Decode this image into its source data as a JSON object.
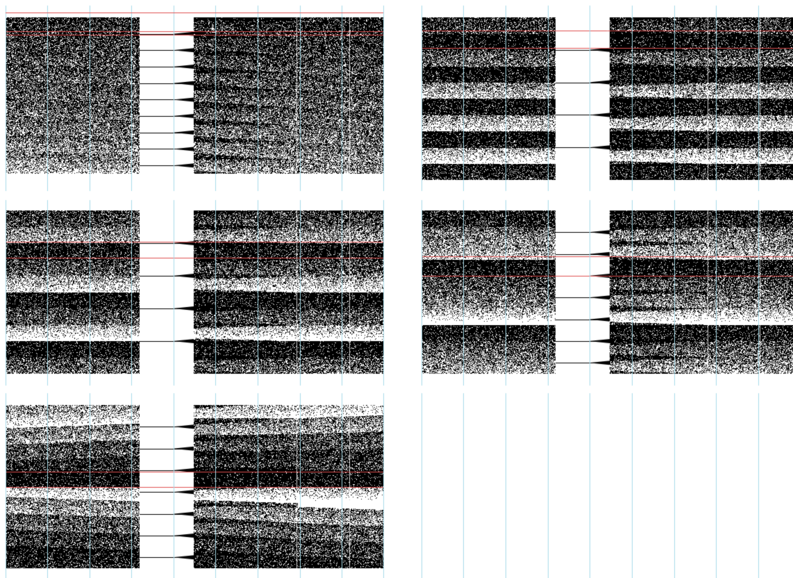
{
  "panels": [
    {
      "name": "panel-top-left",
      "bands": [
        {
          "shade": 0.18,
          "skew": 0.02
        },
        {
          "shade": 0.22,
          "skew": 0.02
        },
        {
          "shade": 0.28,
          "skew": 0.02
        },
        {
          "shade": 0.3,
          "skew": 0.02
        },
        {
          "shade": 0.33,
          "skew": 0.02
        },
        {
          "shade": 0.36,
          "skew": 0.02
        },
        {
          "shade": 0.42,
          "skew": 0.02
        },
        {
          "shade": 0.48,
          "skew": 0.02
        },
        {
          "shade": 0.55,
          "skew": 0.02
        }
      ],
      "pinch_count": 9,
      "red_lines": [
        0.09,
        0.11
      ]
    },
    {
      "name": "panel-top-right",
      "bands": [
        {
          "shade": 0.22,
          "skew": 0
        },
        {
          "shade": 0.08,
          "skew": 0
        },
        {
          "shade": 0.35,
          "skew": 0
        },
        {
          "shade": 0.1,
          "skew": 0
        },
        {
          "shade": 0.62,
          "skew": 0
        },
        {
          "shade": 0.1,
          "skew": 0
        },
        {
          "shade": 0.7,
          "skew": 0
        },
        {
          "shade": 0.1,
          "skew": 0
        },
        {
          "shade": 0.78,
          "skew": 0
        },
        {
          "shade": 0.14,
          "skew": 0
        }
      ],
      "pinch_count": 4,
      "red_lines": [
        0.08,
        0.19
      ]
    },
    {
      "name": "panel-middle-left",
      "bands": [
        {
          "shade": 0.25,
          "skew": 0
        },
        {
          "shade": 0.55,
          "skew": 0
        },
        {
          "shade": 0.12,
          "skew": 0
        },
        {
          "shade": 0.3,
          "skew": 0
        },
        {
          "shade": 0.72,
          "skew": 0
        },
        {
          "shade": 0.1,
          "skew": 0
        },
        {
          "shade": 0.3,
          "skew": 0
        },
        {
          "shade": 0.82,
          "skew": 0
        },
        {
          "shade": 0.1,
          "skew": 0
        },
        {
          "shade": 0.35,
          "skew": 0
        }
      ],
      "pinch_count": 4,
      "red_lines": [
        0.19,
        0.29
      ]
    },
    {
      "name": "panel-middle-right",
      "bands": [
        {
          "shade": 0.15,
          "skew": 0
        },
        {
          "shade": 0.45,
          "skew": 0
        },
        {
          "shade": 0.65,
          "skew": 0
        },
        {
          "shade": 0.1,
          "skew": 0
        },
        {
          "shade": 0.3,
          "skew": 0
        },
        {
          "shade": 0.45,
          "skew": 0
        },
        {
          "shade": 0.85,
          "skew": 0
        },
        {
          "shade": 0.12,
          "skew": 0
        },
        {
          "shade": 0.35,
          "skew": 0
        },
        {
          "shade": 0.55,
          "skew": 0
        }
      ],
      "pinch_count": 7,
      "red_lines": [
        0.28,
        0.4
      ]
    },
    {
      "name": "panel-bottom-left",
      "bands": [
        {
          "shade": 0.78,
          "skew": -0.02
        },
        {
          "shade": 0.55,
          "skew": -0.02
        },
        {
          "shade": 0.3,
          "skew": -0.02
        },
        {
          "shade": 0.18,
          "skew": -0.02
        },
        {
          "shade": 0.08,
          "skew": 0
        },
        {
          "shade": 0.85,
          "skew": 0
        },
        {
          "shade": 0.55,
          "skew": 0.02
        },
        {
          "shade": 0.35,
          "skew": 0.02
        },
        {
          "shade": 0.22,
          "skew": 0.02
        },
        {
          "shade": 0.12,
          "skew": 0.02
        }
      ],
      "pinch_count": 7,
      "red_lines": [
        0.41,
        0.5
      ]
    }
  ],
  "colors": {
    "background": "#ffffff",
    "guide_line": "#a8dcea",
    "marker_line": "#e05050",
    "ink": "#000000"
  }
}
